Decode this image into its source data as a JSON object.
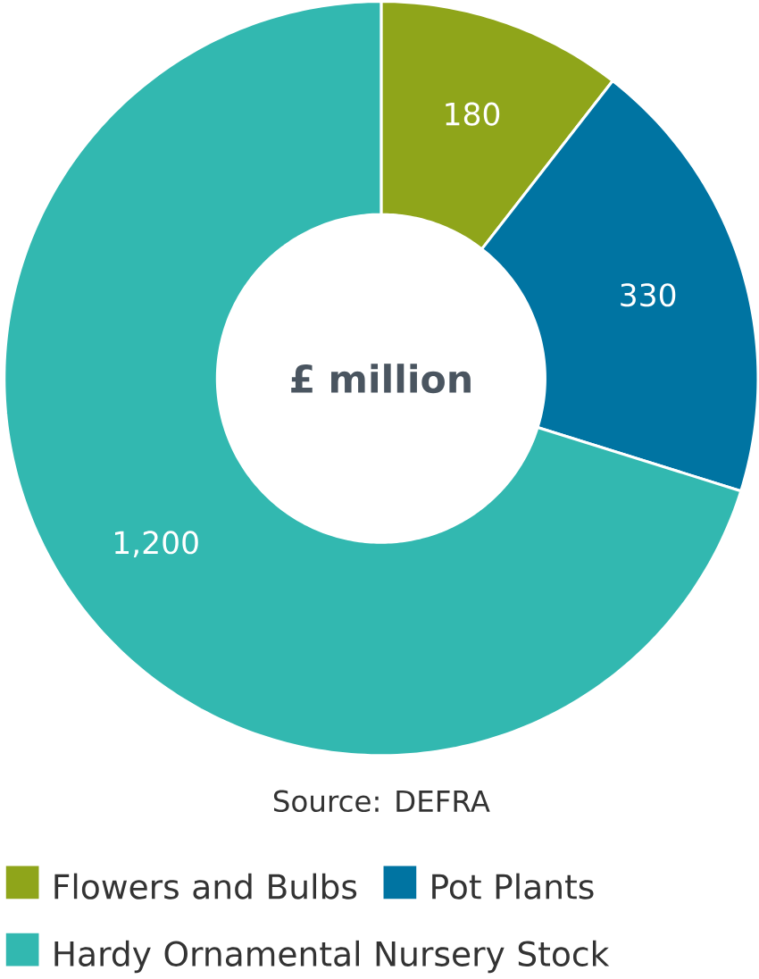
{
  "chart_data": {
    "type": "donut",
    "categories": [
      "Flowers and Bulbs",
      "Pot Plants",
      "Hardy Ornamental Nursery Stock"
    ],
    "values": [
      180,
      330,
      1200
    ],
    "colors": [
      "#8fa51a",
      "#0074a2",
      "#32b8b0"
    ],
    "value_labels": [
      "180",
      "330",
      "1,200"
    ],
    "annotations": [
      "£ million",
      "Source: DEFRA"
    ],
    "legend": "bottom"
  }
}
